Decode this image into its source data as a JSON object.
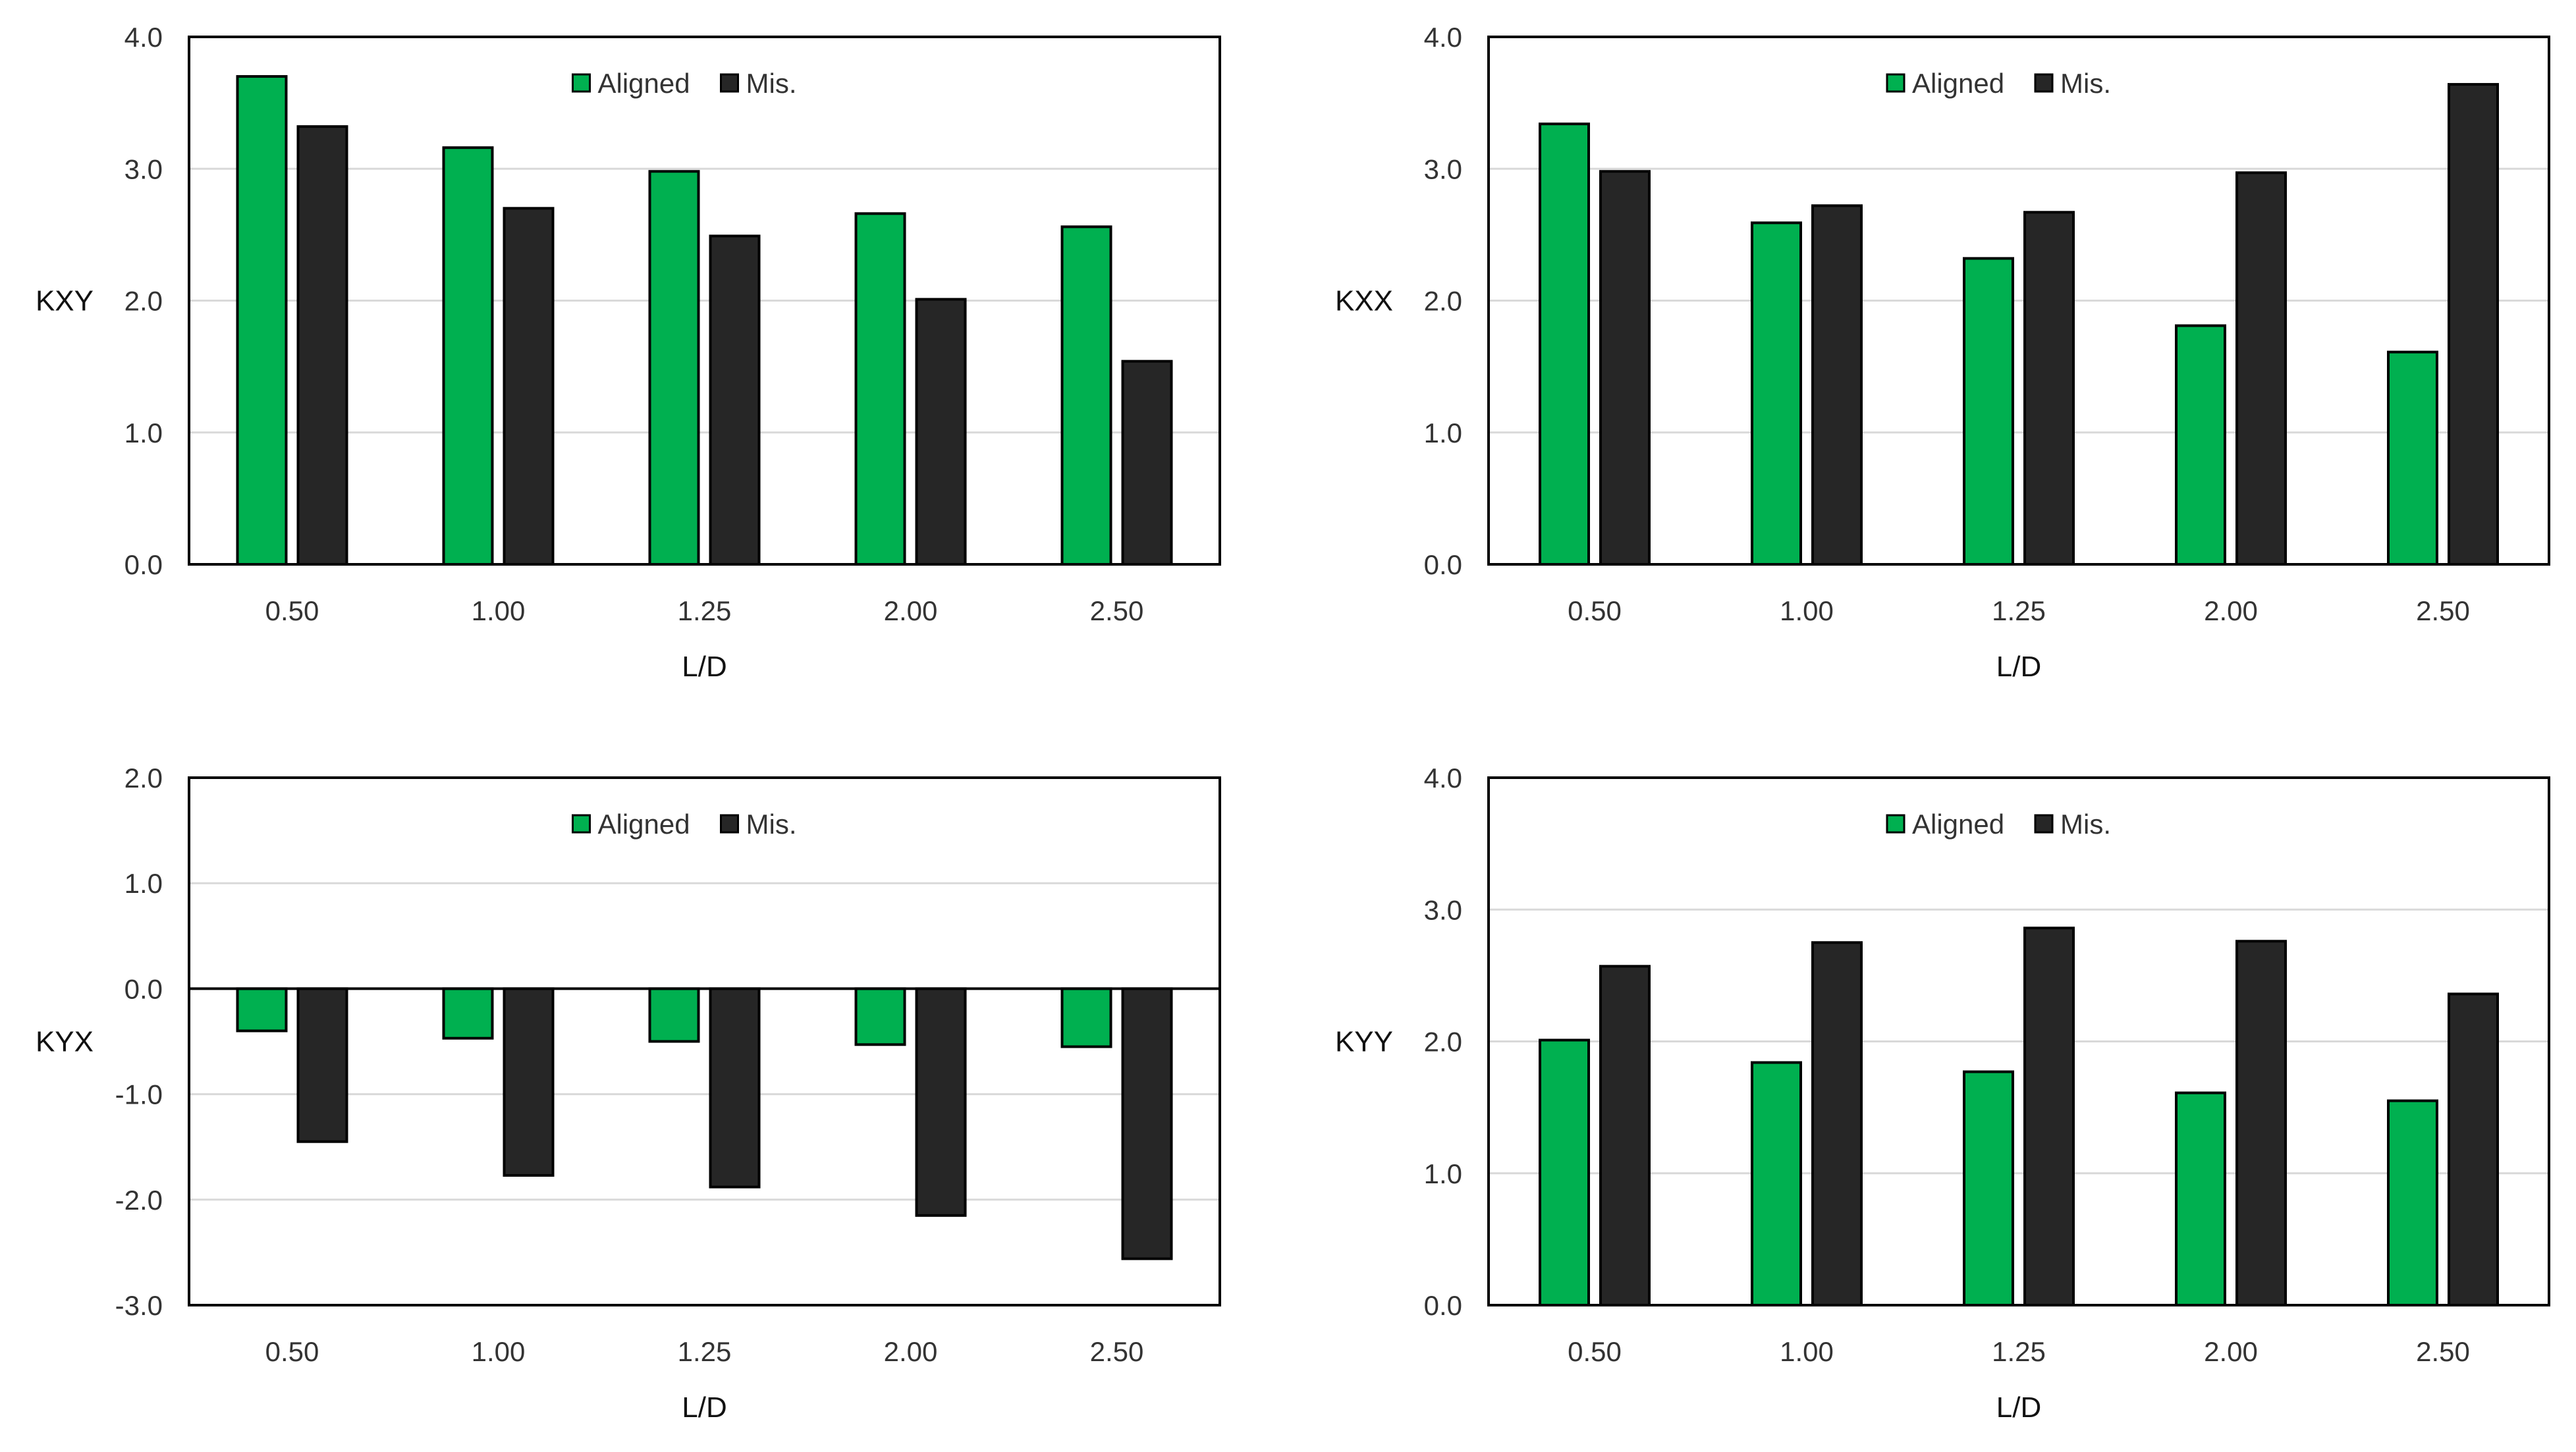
{
  "chart_data": [
    {
      "type": "bar",
      "id": "kxy",
      "title": "",
      "xlabel": "L/D",
      "ylabel": "KXY",
      "categories": [
        "0.50",
        "1.00",
        "1.25",
        "2.00",
        "2.50"
      ],
      "ylim": [
        0,
        4
      ],
      "yticks": [
        "0.0",
        "1.0",
        "2.0",
        "3.0",
        "4.0"
      ],
      "grid": true,
      "legend": "top-center",
      "series": [
        {
          "name": "Aligned",
          "values": [
            3.7,
            3.16,
            2.98,
            2.66,
            2.56
          ]
        },
        {
          "name": "Mis.",
          "values": [
            3.32,
            2.7,
            2.49,
            2.01,
            1.54
          ]
        }
      ]
    },
    {
      "type": "bar",
      "id": "kxx",
      "title": "",
      "xlabel": "L/D",
      "ylabel": "KXX",
      "categories": [
        "0.50",
        "1.00",
        "1.25",
        "2.00",
        "2.50"
      ],
      "ylim": [
        0,
        4
      ],
      "yticks": [
        "0.0",
        "1.0",
        "2.0",
        "3.0",
        "4.0"
      ],
      "grid": true,
      "legend": "top-center",
      "series": [
        {
          "name": "Aligned",
          "values": [
            3.34,
            2.59,
            2.32,
            1.81,
            1.61
          ]
        },
        {
          "name": "Mis.",
          "values": [
            2.98,
            2.72,
            2.67,
            2.97,
            3.64
          ]
        }
      ]
    },
    {
      "type": "bar",
      "id": "kyx",
      "title": "",
      "xlabel": "L/D",
      "ylabel": "KYX",
      "categories": [
        "0.50",
        "1.00",
        "1.25",
        "2.00",
        "2.50"
      ],
      "ylim": [
        -3,
        2
      ],
      "yticks": [
        "-3.0",
        "-2.0",
        "-1.0",
        "0.0",
        "1.0",
        "2.0"
      ],
      "grid": true,
      "legend": "top-center",
      "series": [
        {
          "name": "Aligned",
          "values": [
            -0.4,
            -0.47,
            -0.5,
            -0.53,
            -0.55
          ]
        },
        {
          "name": "Mis.",
          "values": [
            -1.45,
            -1.77,
            -1.88,
            -2.15,
            -2.56
          ]
        }
      ]
    },
    {
      "type": "bar",
      "id": "kyy",
      "title": "",
      "xlabel": "L/D",
      "ylabel": "KYY",
      "categories": [
        "0.50",
        "1.00",
        "1.25",
        "2.00",
        "2.50"
      ],
      "ylim": [
        0,
        4
      ],
      "yticks": [
        "0.0",
        "1.0",
        "2.0",
        "3.0",
        "4.0"
      ],
      "grid": true,
      "legend": "top-center",
      "series": [
        {
          "name": "Aligned",
          "values": [
            2.01,
            1.84,
            1.77,
            1.61,
            1.55
          ]
        },
        {
          "name": "Mis.",
          "values": [
            2.57,
            2.75,
            2.86,
            2.76,
            2.36
          ]
        }
      ]
    }
  ],
  "colors": {
    "aligned": "#00b050",
    "misaligned": "#262626",
    "grid": "#d9d9d9",
    "frame": "#000000"
  }
}
